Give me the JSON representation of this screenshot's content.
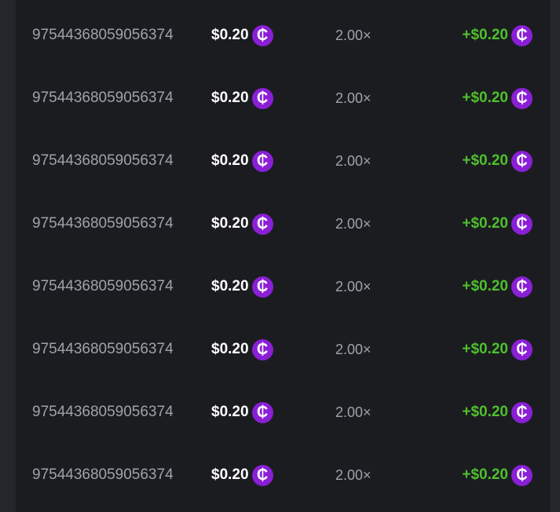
{
  "colors": {
    "coin": "#8a1fd6",
    "payout": "#4ec02d",
    "background": "#1b1c20"
  },
  "coin_icon": "cent-coin-icon",
  "rows": [
    {
      "id": "97544368059056374",
      "bet": "$0.20",
      "multiplier": "2.00×",
      "payout": "+$0.20"
    },
    {
      "id": "97544368059056374",
      "bet": "$0.20",
      "multiplier": "2.00×",
      "payout": "+$0.20"
    },
    {
      "id": "97544368059056374",
      "bet": "$0.20",
      "multiplier": "2.00×",
      "payout": "+$0.20"
    },
    {
      "id": "97544368059056374",
      "bet": "$0.20",
      "multiplier": "2.00×",
      "payout": "+$0.20"
    },
    {
      "id": "97544368059056374",
      "bet": "$0.20",
      "multiplier": "2.00×",
      "payout": "+$0.20"
    },
    {
      "id": "97544368059056374",
      "bet": "$0.20",
      "multiplier": "2.00×",
      "payout": "+$0.20"
    },
    {
      "id": "97544368059056374",
      "bet": "$0.20",
      "multiplier": "2.00×",
      "payout": "+$0.20"
    },
    {
      "id": "97544368059056374",
      "bet": "$0.20",
      "multiplier": "2.00×",
      "payout": "+$0.20"
    }
  ]
}
